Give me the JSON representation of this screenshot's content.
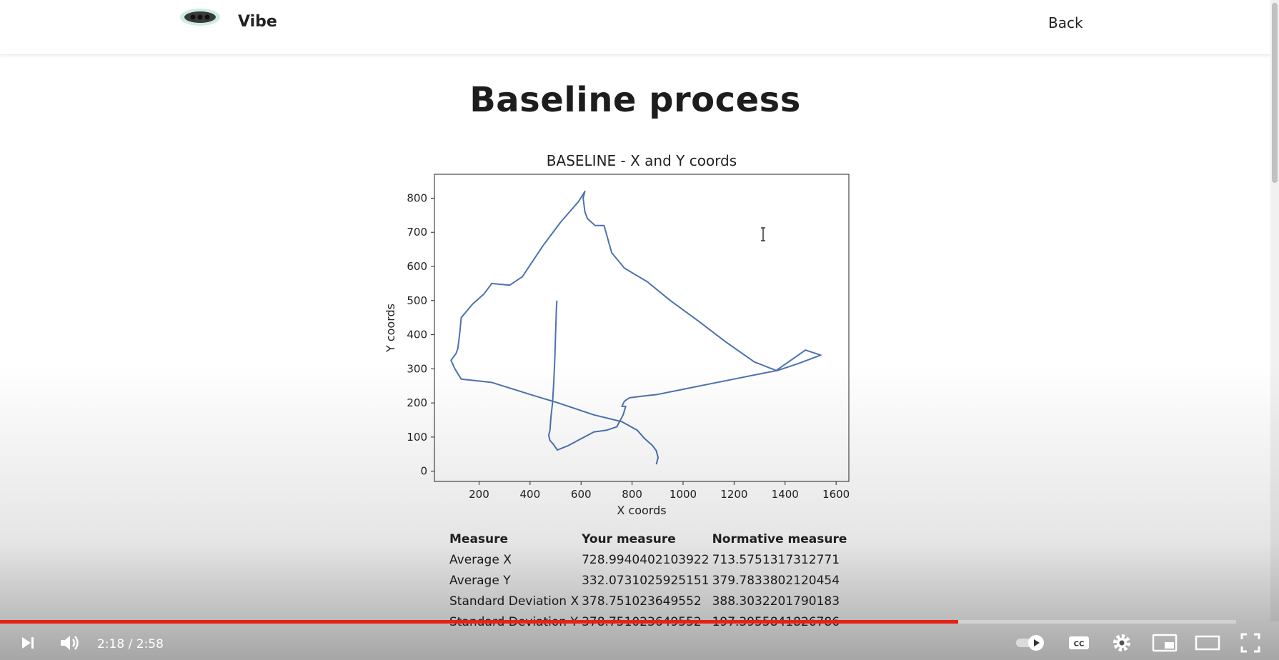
{
  "navbar": {
    "brand": "Vibe",
    "back_label": "Back"
  },
  "page": {
    "title": "Baseline process"
  },
  "chart_data": {
    "type": "line",
    "title": "BASELINE - X and Y coords",
    "xlabel": "X coords",
    "ylabel": "Y coords",
    "xlim": [
      25,
      1650
    ],
    "ylim": [
      -30,
      870
    ],
    "xticks": [
      200,
      400,
      600,
      800,
      1000,
      1200,
      1400,
      1600
    ],
    "yticks": [
      0,
      100,
      200,
      300,
      400,
      500,
      600,
      700,
      800
    ],
    "grid": false,
    "color": "#4c72b0",
    "series": [
      {
        "x": [
          505,
          503,
          500,
          497,
          493,
          488,
          482,
          478,
          473,
          478,
          490,
          507,
          550,
          600,
          650,
          700,
          740,
          765,
          775,
          760,
          770,
          790,
          840,
          900,
          1000,
          1100,
          1200,
          1300,
          1370,
          1450,
          1540,
          1480,
          1365,
          1280,
          1165,
          1060,
          950,
          860,
          770,
          720,
          690,
          655,
          625,
          615,
          608,
          615,
          590,
          520,
          450,
          370,
          320,
          250,
          220,
          175,
          130,
          125,
          117,
          110,
          90,
          105,
          130,
          250,
          400,
          510,
          650,
          760,
          820,
          850,
          880,
          895,
          902,
          895
        ],
        "y": [
          500,
          470,
          400,
          330,
          260,
          200,
          160,
          120,
          105,
          90,
          80,
          62,
          75,
          95,
          115,
          120,
          130,
          165,
          190,
          190,
          205,
          215,
          220,
          225,
          240,
          255,
          270,
          285,
          295,
          315,
          340,
          355,
          295,
          320,
          380,
          440,
          500,
          555,
          595,
          640,
          720,
          720,
          740,
          760,
          800,
          820,
          790,
          730,
          660,
          570,
          545,
          550,
          520,
          490,
          450,
          410,
          360,
          345,
          325,
          300,
          270,
          260,
          225,
          200,
          165,
          145,
          120,
          95,
          75,
          60,
          40,
          20
        ]
      }
    ]
  },
  "measures": {
    "headers": [
      "Measure",
      "Your measure",
      "Normative measure"
    ],
    "rows": [
      [
        "Average X",
        "728.9940402103922",
        "713.5751317312771"
      ],
      [
        "Average Y",
        "332.0731025925151",
        "379.7833802120454"
      ],
      [
        "Standard Deviation X",
        "378.751023649552",
        "388.3032201790183"
      ],
      [
        "Standard Deviation Y",
        "378.751023649552",
        "197.3955841826786"
      ]
    ]
  },
  "player": {
    "time": "2:18 / 2:58",
    "progress": 0.775,
    "accent": "#e62117",
    "icons": [
      "next-icon",
      "volume-icon",
      "autoplay-toggle-icon",
      "captions-icon",
      "settings-icon",
      "miniplayer-icon",
      "theater-icon",
      "fullscreen-icon"
    ]
  }
}
